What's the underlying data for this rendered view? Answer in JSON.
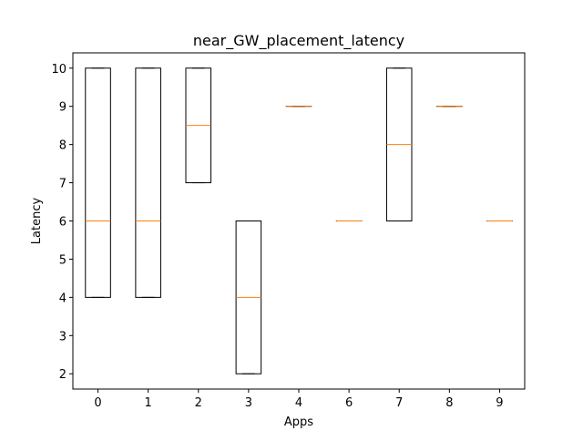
{
  "chart_data": {
    "type": "box",
    "title": "near_GW_placement_latency",
    "xlabel": "Apps",
    "ylabel": "Latency",
    "categories": [
      "0",
      "1",
      "2",
      "3",
      "4",
      "6",
      "7",
      "8",
      "9"
    ],
    "ylim": [
      1.6,
      10.4
    ],
    "yticks": [
      2,
      3,
      4,
      5,
      6,
      7,
      8,
      9,
      10
    ],
    "boxes": [
      {
        "category": "0",
        "min": 4,
        "q1": 4,
        "median": 6,
        "q3": 10,
        "max": 10
      },
      {
        "category": "1",
        "min": 4,
        "q1": 4,
        "median": 6,
        "q3": 10,
        "max": 10
      },
      {
        "category": "2",
        "min": 7,
        "q1": 7,
        "median": 8.5,
        "q3": 10,
        "max": 10
      },
      {
        "category": "3",
        "min": 2,
        "q1": 2,
        "median": 4,
        "q3": 6,
        "max": 6
      },
      {
        "category": "4",
        "min": 9,
        "q1": 9,
        "median": 9,
        "q3": 9,
        "max": 9
      },
      {
        "category": "6",
        "min": 6,
        "q1": 6,
        "median": 6,
        "q3": 6,
        "max": 6
      },
      {
        "category": "7",
        "min": 6,
        "q1": 6,
        "median": 8,
        "q3": 10,
        "max": 10
      },
      {
        "category": "8",
        "min": 9,
        "q1": 9,
        "median": 9,
        "q3": 9,
        "max": 9
      },
      {
        "category": "9",
        "min": 6,
        "q1": 6,
        "median": 6,
        "q3": 6,
        "max": 6
      }
    ],
    "grid": false,
    "legend": "none",
    "colors": {
      "box": "#000000",
      "median": "#ff7f0e"
    }
  }
}
